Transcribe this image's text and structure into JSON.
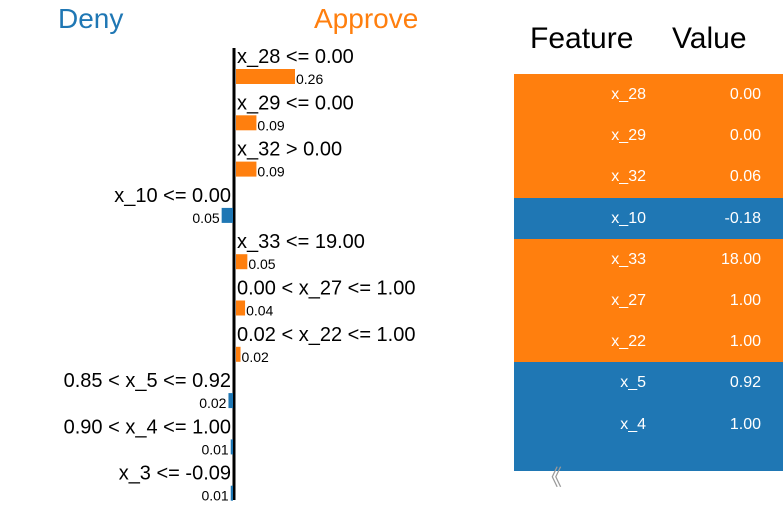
{
  "header": {
    "deny_label": "Deny",
    "approve_label": "Approve",
    "deny_color": "#1f77b4",
    "approve_color": "#ff7f0e"
  },
  "chart_data": {
    "type": "bar",
    "orientation": "horizontal-diverging",
    "categories": [
      "x_28 <= 0.00",
      "x_29 <= 0.00",
      "x_32 > 0.00",
      "x_10 <= 0.00",
      "x_33 <= 19.00",
      "0.00 < x_27 <= 1.00",
      "0.02 < x_22 <= 1.00",
      "0.85 < x_5 <= 0.92",
      "0.90 < x_4 <= 1.00",
      "x_3 <= -0.09"
    ],
    "values": [
      0.26,
      0.09,
      0.09,
      -0.05,
      0.05,
      0.04,
      0.02,
      -0.02,
      -0.01,
      -0.01
    ],
    "value_labels": [
      "0.26",
      "0.09",
      "0.09",
      "0.05",
      "0.05",
      "0.04",
      "0.02",
      "0.02",
      "0.01",
      "0.01"
    ],
    "positive_color": "#ff7f0e",
    "negative_color": "#1f77b4"
  },
  "table": {
    "headers": {
      "feature": "Feature",
      "value": "Value"
    },
    "rows": [
      {
        "feature": "x_28",
        "value": "0.00",
        "color": "#ff7f0e"
      },
      {
        "feature": "x_29",
        "value": "0.00",
        "color": "#ff7f0e"
      },
      {
        "feature": "x_32",
        "value": "0.06",
        "color": "#ff7f0e"
      },
      {
        "feature": "x_10",
        "value": "-0.18",
        "color": "#1f77b4"
      },
      {
        "feature": "x_33",
        "value": "18.00",
        "color": "#ff7f0e"
      },
      {
        "feature": "x_27",
        "value": "1.00",
        "color": "#ff7f0e"
      },
      {
        "feature": "x_22",
        "value": "1.00",
        "color": "#ff7f0e"
      },
      {
        "feature": "x_5",
        "value": "0.92",
        "color": "#1f77b4"
      },
      {
        "feature": "x_4",
        "value": "1.00",
        "color": "#1f77b4"
      }
    ]
  },
  "nav": {
    "prev_icon": "double-chevron-left-icon",
    "prev_glyph": "《"
  }
}
